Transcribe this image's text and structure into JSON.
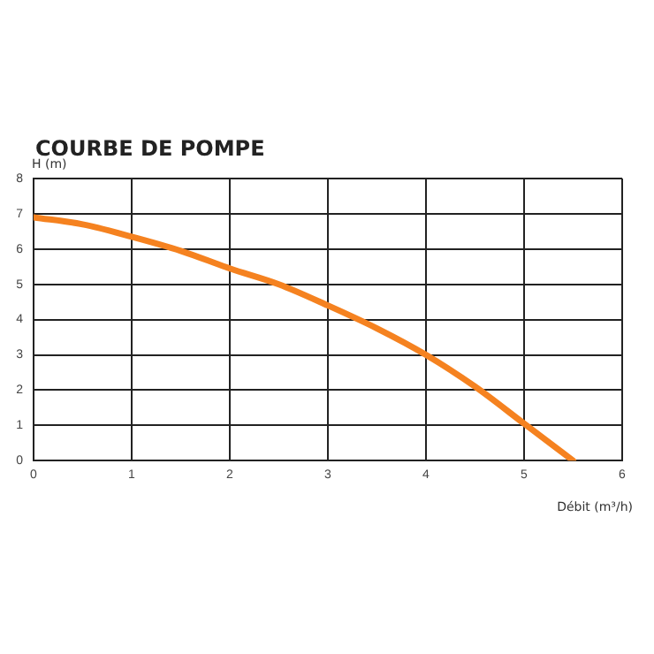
{
  "chart_data": {
    "type": "line",
    "title": "COURBE DE POMPE",
    "xlabel": "Débit (m³/h)",
    "ylabel": "H (m)",
    "x": [
      0,
      0.5,
      1,
      1.5,
      2,
      2.5,
      3,
      3.5,
      4,
      4.5,
      5,
      5.5
    ],
    "series": [
      {
        "color": "#f58220",
        "values": [
          6.9,
          6.7,
          6.35,
          5.95,
          5.45,
          5.0,
          4.4,
          3.75,
          3.0,
          2.1,
          1.05,
          0
        ]
      }
    ],
    "xlim": [
      0,
      6
    ],
    "xticks": [
      0,
      1,
      2,
      3,
      4,
      5,
      6
    ],
    "ylim": [
      0,
      8
    ],
    "yticks": [
      0,
      1,
      2,
      3,
      4,
      5,
      6,
      7,
      8
    ],
    "grid": true,
    "legend": false,
    "marker": "none",
    "line_style": "solid"
  }
}
